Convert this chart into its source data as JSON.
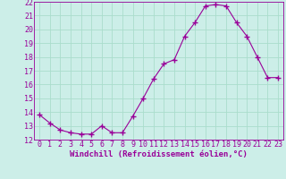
{
  "x": [
    0,
    1,
    2,
    3,
    4,
    5,
    6,
    7,
    8,
    9,
    10,
    11,
    12,
    13,
    14,
    15,
    16,
    17,
    18,
    19,
    20,
    21,
    22,
    23
  ],
  "y": [
    13.8,
    13.2,
    12.7,
    12.5,
    12.4,
    12.4,
    13.0,
    12.5,
    12.5,
    13.7,
    15.0,
    16.4,
    17.5,
    17.8,
    19.5,
    20.5,
    21.7,
    21.8,
    21.7,
    20.5,
    19.5,
    18.0,
    16.5,
    16.5
  ],
  "line_color": "#990099",
  "marker": "+",
  "marker_size": 4,
  "bg_color": "#cceee8",
  "grid_color": "#aaddcc",
  "xlabel": "Windchill (Refroidissement éolien,°C)",
  "xlabel_fontsize": 6.5,
  "tick_fontsize": 6.0,
  "ylim": [
    12,
    22
  ],
  "xlim": [
    -0.5,
    23.5
  ],
  "yticks": [
    12,
    13,
    14,
    15,
    16,
    17,
    18,
    19,
    20,
    21,
    22
  ],
  "xticks": [
    0,
    1,
    2,
    3,
    4,
    5,
    6,
    7,
    8,
    9,
    10,
    11,
    12,
    13,
    14,
    15,
    16,
    17,
    18,
    19,
    20,
    21,
    22,
    23
  ]
}
